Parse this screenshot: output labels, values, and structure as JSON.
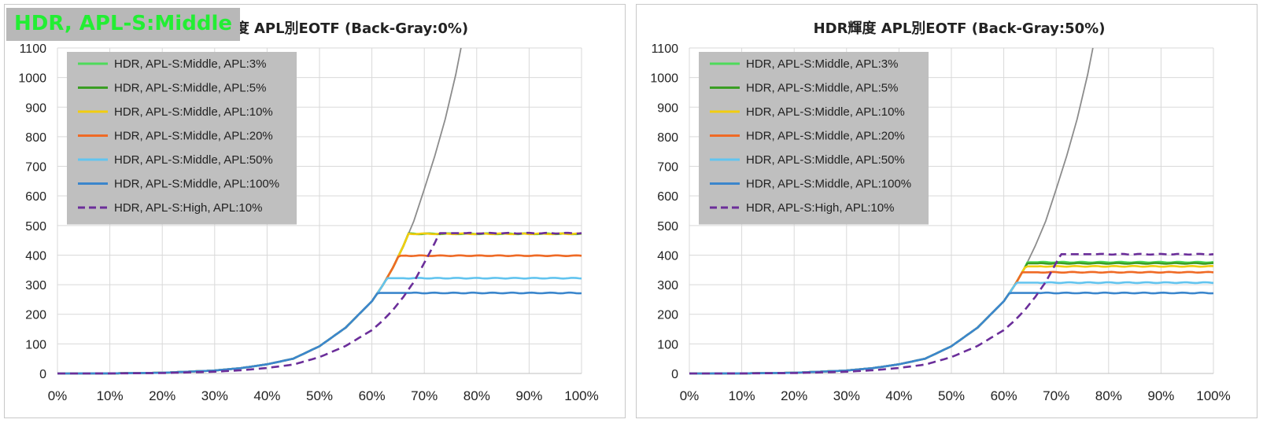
{
  "overlay_label": "HDR, APL-S:Middle",
  "colors": {
    "apl3": "#4ddb5a",
    "apl5": "#3a9e24",
    "apl10": "#f2cd10",
    "apl20": "#ef6a25",
    "apl50": "#62c4ef",
    "apl100": "#3b86cc",
    "high10": "#6b2e9a",
    "reference": "#8c8c8c",
    "grid": "#d9d9d9",
    "legend_bg": "#bfbfbf",
    "overlay_text": "#22ee33",
    "overlay_bg": "#b8b8b8"
  },
  "chart_data": [
    {
      "type": "line",
      "title": "HDR輝度 APL別EOTF (Back-Gray:0%)",
      "xlabel": "",
      "ylabel": "",
      "xlim": [
        0,
        100
      ],
      "ylim": [
        0,
        1100
      ],
      "x_ticks": [
        "0%",
        "10%",
        "20%",
        "30%",
        "40%",
        "50%",
        "60%",
        "70%",
        "80%",
        "90%",
        "100%"
      ],
      "y_ticks": [
        "0",
        "100",
        "200",
        "300",
        "400",
        "500",
        "600",
        "700",
        "800",
        "900",
        "1000",
        "1100"
      ],
      "legend_position": "top-left",
      "grid": true,
      "series": [
        {
          "name": "HDR, APL-S:Middle, APL:3%",
          "color_key": "apl3",
          "dash": false,
          "peak": 472,
          "knee": 65.5
        },
        {
          "name": "HDR, APL-S:Middle, APL:5%",
          "color_key": "apl5",
          "dash": false,
          "peak": 472,
          "knee": 65.5
        },
        {
          "name": "HDR, APL-S:Middle, APL:10%",
          "color_key": "apl10",
          "dash": false,
          "peak": 472,
          "knee": 65.5
        },
        {
          "name": "HDR, APL-S:Middle, APL:20%",
          "color_key": "apl20",
          "dash": false,
          "peak": 398,
          "knee": 65
        },
        {
          "name": "HDR, APL-S:Middle, APL:50%",
          "color_key": "apl50",
          "dash": false,
          "peak": 322,
          "knee": 65
        },
        {
          "name": "HDR, APL-S:Middle, APL:100%",
          "color_key": "apl100",
          "dash": false,
          "peak": 272,
          "knee": 66
        },
        {
          "name": "HDR, APL-S:High, APL:10%",
          "color_key": "high10",
          "dash": true,
          "peak": 474,
          "knee": 77
        }
      ],
      "reference_curve": {
        "color_key": "reference",
        "x": [
          0,
          10,
          20,
          30,
          35,
          40,
          45,
          50,
          55,
          60,
          62,
          64,
          66,
          68,
          70,
          72,
          74,
          76,
          77
        ],
        "y": [
          0,
          0.3,
          2.4,
          10,
          18,
          31,
          50,
          92,
          155,
          244,
          296,
          357,
          431,
          515,
          623,
          735,
          860,
          1010,
          1100
        ]
      }
    },
    {
      "type": "line",
      "title": "HDR輝度 APL別EOTF (Back-Gray:50%)",
      "xlabel": "",
      "ylabel": "",
      "xlim": [
        0,
        100
      ],
      "ylim": [
        0,
        1100
      ],
      "x_ticks": [
        "0%",
        "10%",
        "20%",
        "30%",
        "40%",
        "50%",
        "60%",
        "70%",
        "80%",
        "90%",
        "100%"
      ],
      "y_ticks": [
        "0",
        "100",
        "200",
        "300",
        "400",
        "500",
        "600",
        "700",
        "800",
        "900",
        "1000",
        "1100"
      ],
      "legend_position": "top-left",
      "grid": true,
      "series": [
        {
          "name": "HDR, APL-S:Middle, APL:3%",
          "color_key": "apl3",
          "dash": false,
          "peak": 376,
          "knee": 65.5
        },
        {
          "name": "HDR, APL-S:Middle, APL:5%",
          "color_key": "apl5",
          "dash": false,
          "peak": 372,
          "knee": 65.5
        },
        {
          "name": "HDR, APL-S:Middle, APL:10%",
          "color_key": "apl10",
          "dash": false,
          "peak": 362,
          "knee": 65.5
        },
        {
          "name": "HDR, APL-S:Middle, APL:20%",
          "color_key": "apl20",
          "dash": false,
          "peak": 342,
          "knee": 65.5
        },
        {
          "name": "HDR, APL-S:Middle, APL:50%",
          "color_key": "apl50",
          "dash": false,
          "peak": 307,
          "knee": 65.5
        },
        {
          "name": "HDR, APL-S:Middle, APL:100%",
          "color_key": "apl100",
          "dash": false,
          "peak": 272,
          "knee": 65.5
        },
        {
          "name": "HDR, APL-S:High, APL:10%",
          "color_key": "high10",
          "dash": true,
          "peak": 403,
          "knee": 76.5
        }
      ],
      "reference_curve": {
        "color_key": "reference",
        "x": [
          0,
          10,
          20,
          30,
          35,
          40,
          45,
          50,
          55,
          60,
          62,
          64,
          66,
          68,
          70,
          72,
          74,
          76,
          77
        ],
        "y": [
          0,
          0.3,
          2.4,
          10,
          18,
          31,
          50,
          92,
          155,
          244,
          296,
          357,
          431,
          515,
          623,
          735,
          860,
          1010,
          1100
        ]
      }
    }
  ]
}
